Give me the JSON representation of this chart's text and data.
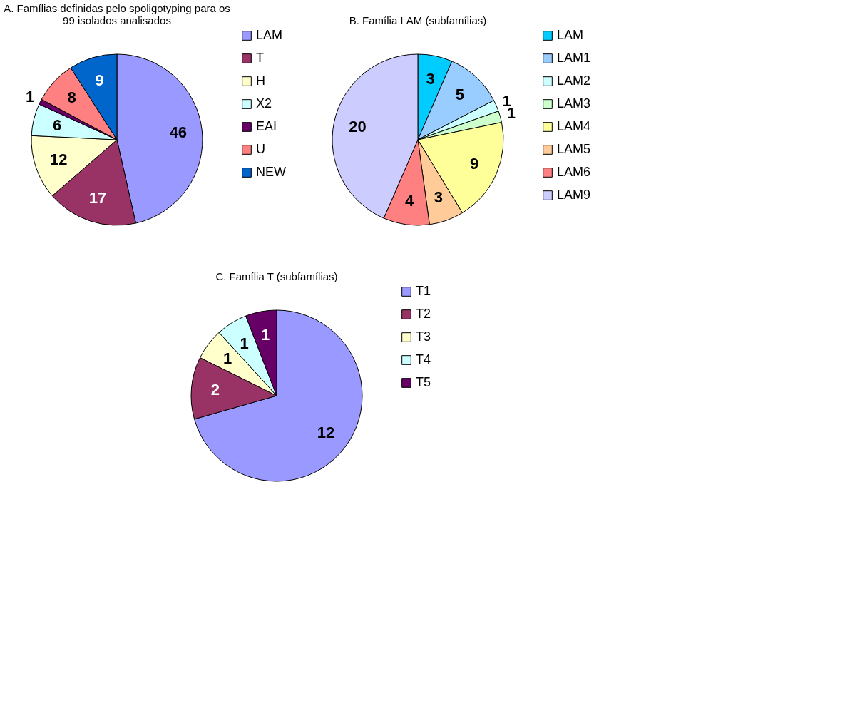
{
  "chart_data": [
    {
      "type": "pie",
      "title": "A. Famílias definidas pelo spoligotyping para os 99 isolados analisados",
      "categories": [
        "LAM",
        "T",
        "H",
        "X2",
        "EAI",
        "U",
        "NEW"
      ],
      "values": [
        46,
        17,
        12,
        6,
        1,
        8,
        9
      ],
      "colors": [
        "#9999ff",
        "#993366",
        "#ffffcc",
        "#ccffff",
        "#660066",
        "#ff8080",
        "#0066cc"
      ],
      "data_labels": true,
      "legend": "right"
    },
    {
      "type": "pie",
      "title": "B. Família LAM (subfamílias)",
      "categories": [
        "LAM",
        "LAM1",
        "LAM2",
        "LAM3",
        "LAM4",
        "LAM5",
        "LAM6",
        "LAM9"
      ],
      "values": [
        3,
        5,
        1,
        1,
        9,
        3,
        4,
        20
      ],
      "colors": [
        "#00ccff",
        "#99ccff",
        "#ccffff",
        "#ccffcc",
        "#ffff99",
        "#ffcc99",
        "#ff8080",
        "#ccccff"
      ],
      "data_labels": true,
      "legend": "right"
    },
    {
      "type": "pie",
      "title": "C. Família T (subfamílias)",
      "categories": [
        "T1",
        "T2",
        "T3",
        "T4",
        "T5"
      ],
      "values": [
        12,
        2,
        1,
        1,
        1
      ],
      "colors": [
        "#9999ff",
        "#993366",
        "#ffffcc",
        "#ccffff",
        "#660066"
      ],
      "data_labels": true,
      "legend": "right"
    }
  ]
}
